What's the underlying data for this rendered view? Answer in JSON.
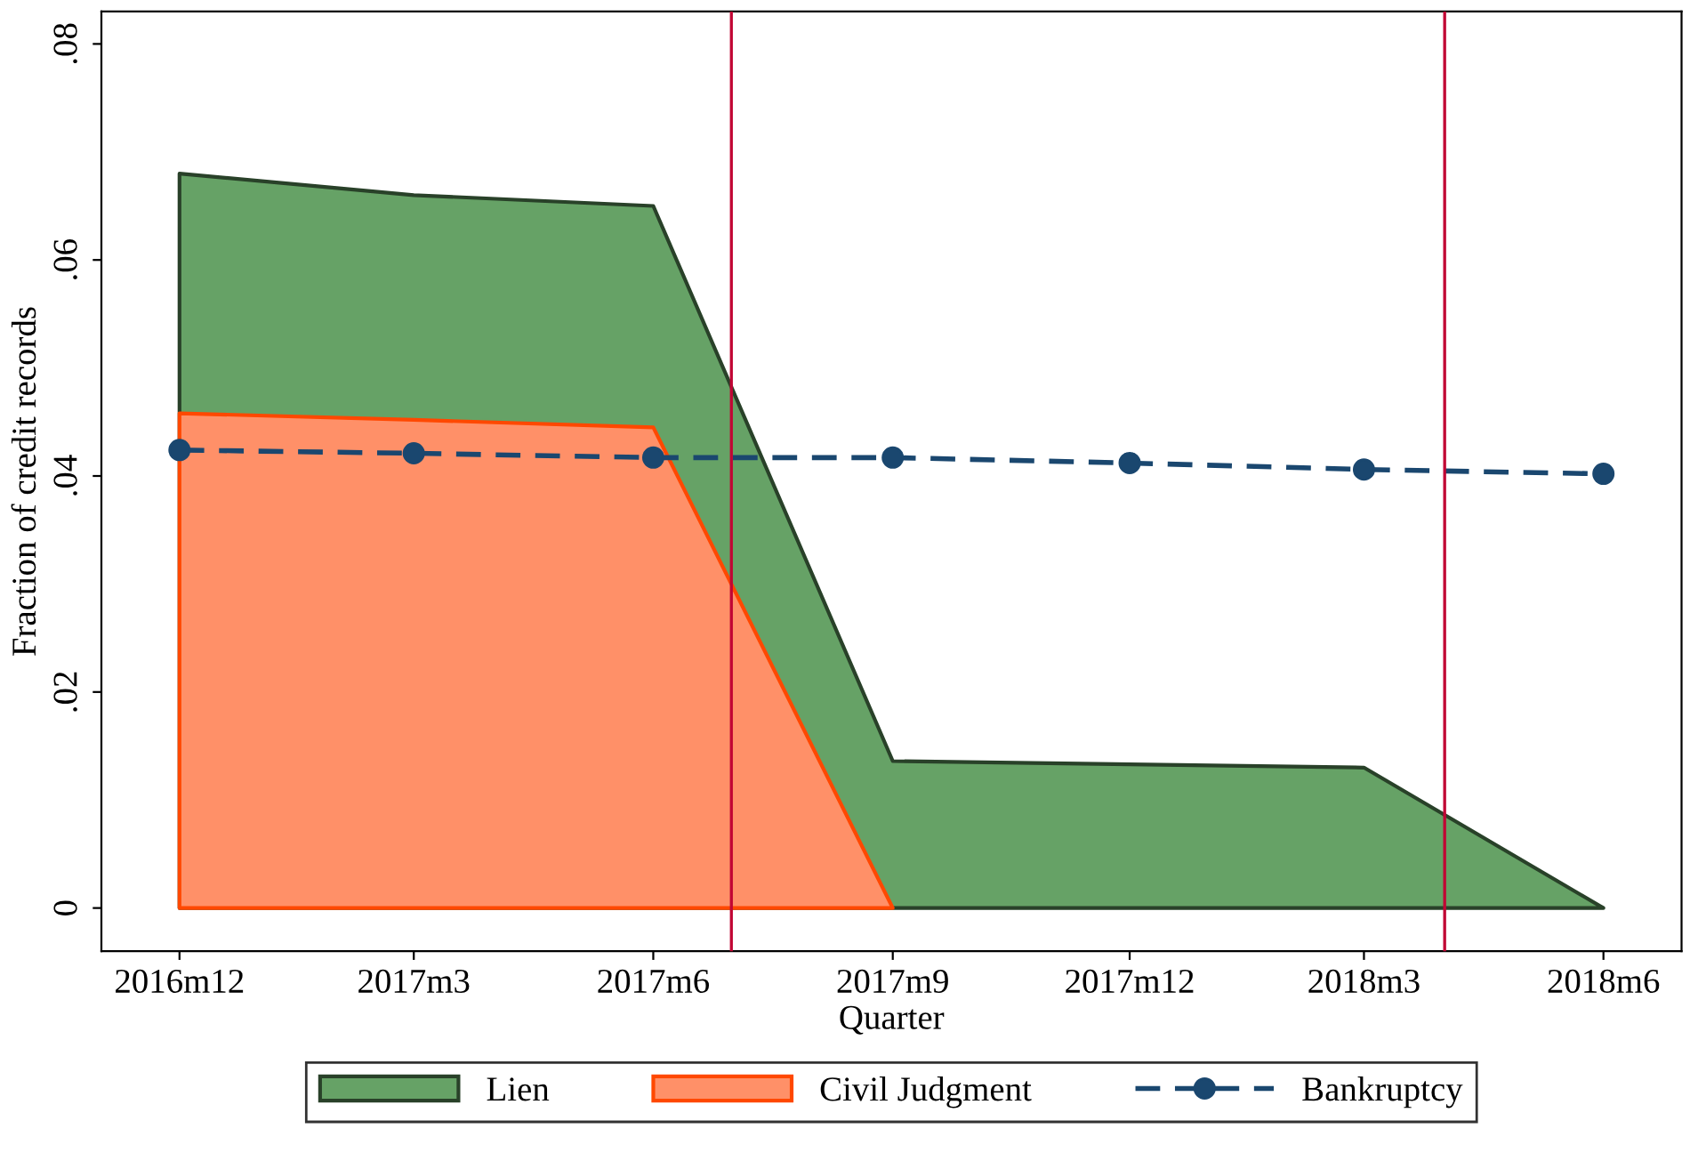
{
  "chart_data": {
    "type": "area",
    "xlabel": "Quarter",
    "ylabel": "Fraction of credit records",
    "x": [
      "2016-12",
      "2017-03",
      "2017-06",
      "2017-09",
      "2017-12",
      "2018-03",
      "2018-06"
    ],
    "xlim": [
      "2016-11",
      "2018-07"
    ],
    "xticks": [
      {
        "value": "2016-12",
        "label": "2016m12"
      },
      {
        "value": "2017-03",
        "label": "2017m3"
      },
      {
        "value": "2017-06",
        "label": "2017m6"
      },
      {
        "value": "2017-09",
        "label": "2017m9"
      },
      {
        "value": "2017-12",
        "label": "2017m12"
      },
      {
        "value": "2018-03",
        "label": "2018m3"
      },
      {
        "value": "2018-06",
        "label": "2018m6"
      }
    ],
    "ylim": [
      -0.004,
      0.083
    ],
    "yticks": [
      0,
      {
        "value": 0.02,
        "label": ".02"
      },
      {
        "value": 0.04,
        "label": ".04"
      },
      {
        "value": 0.06,
        "label": ".06"
      },
      {
        "value": 0.08,
        "label": ".08"
      }
    ],
    "series": [
      {
        "name": "Lien",
        "color": "#66a266",
        "values": [
          0.068,
          0.066,
          0.065,
          0.0136,
          0.0133,
          0.013,
          0
        ]
      },
      {
        "name": "Civil Judgment",
        "color": "#ff9068",
        "values": [
          0.0458,
          0.0452,
          0.0445,
          0,
          null,
          null,
          null
        ]
      },
      {
        "name": "Bankruptcy",
        "type": "line",
        "color": "#1a476f",
        "marker": "circle",
        "line_style": "dashed",
        "values": [
          0.0424,
          0.0421,
          0.0417,
          0.0417,
          0.0412,
          0.0406,
          0.0402
        ]
      }
    ],
    "ref_lines": [
      {
        "axis": "x",
        "value": "2017-07",
        "color": "#c10534"
      },
      {
        "axis": "x",
        "value": "2018-04",
        "color": "#c10534"
      }
    ],
    "grid": false,
    "legend": "bottom"
  }
}
